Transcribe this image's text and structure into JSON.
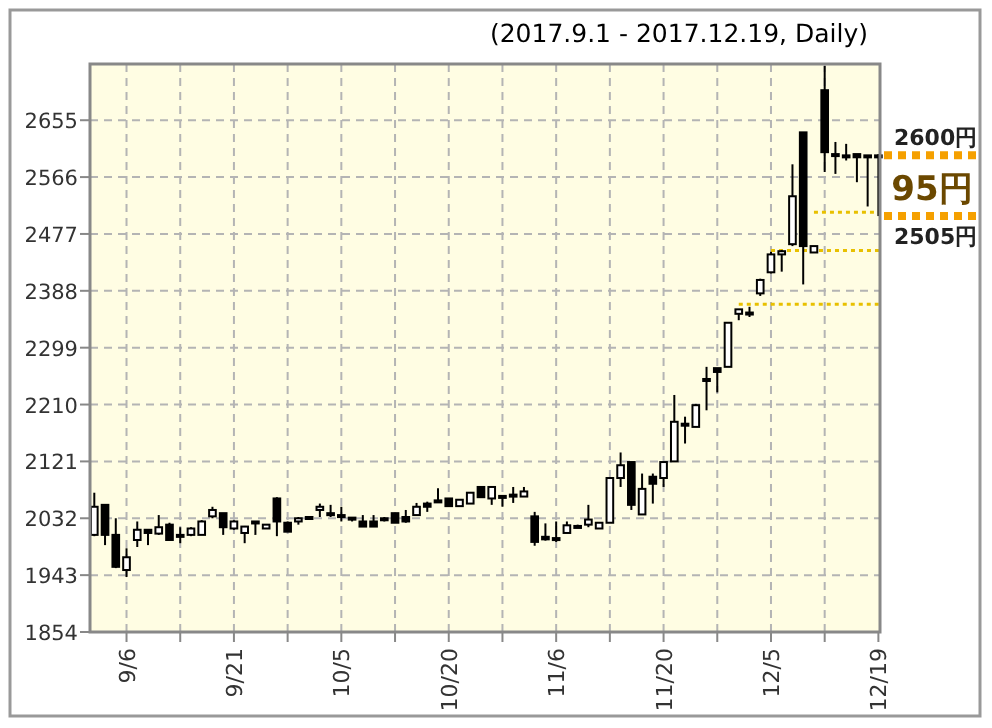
{
  "chart_data": {
    "type": "candlestick",
    "subtitle": "(2017.9.1 - 2017.12.19, Daily)",
    "categories": [
      null,
      null,
      null,
      "9/6",
      null,
      null,
      null,
      null,
      null,
      null,
      null,
      null,
      null,
      "9/21",
      null,
      null,
      null,
      null,
      null,
      null,
      null,
      null,
      null,
      "10/5",
      null,
      null,
      null,
      null,
      null,
      null,
      null,
      null,
      null,
      "10/20",
      null,
      null,
      null,
      null,
      null,
      null,
      null,
      null,
      null,
      "11/6",
      null,
      null,
      null,
      null,
      null,
      null,
      null,
      null,
      null,
      "11/20",
      null,
      null,
      null,
      null,
      null,
      null,
      null,
      null,
      null,
      "12/5",
      null,
      null,
      null,
      null,
      null,
      null,
      null,
      null,
      null,
      "12/19"
    ],
    "ohlc": [
      [
        2006,
        2072,
        2004,
        2050
      ],
      [
        2053,
        2053,
        1990,
        2006
      ],
      [
        2006,
        2032,
        1954,
        1956
      ],
      [
        1951,
        1985,
        1940,
        1971
      ],
      [
        1998,
        2027,
        1987,
        2014
      ],
      [
        2014,
        2015,
        1990,
        2009
      ],
      [
        2008,
        2037,
        2006,
        2018
      ],
      [
        2022,
        2025,
        1998,
        1998
      ],
      [
        2006,
        2018,
        1993,
        2003
      ],
      [
        2006,
        2018,
        2004,
        2016
      ],
      [
        2006,
        2029,
        2006,
        2027
      ],
      [
        2035,
        2050,
        2032,
        2045
      ],
      [
        2040,
        2040,
        2006,
        2018
      ],
      [
        2016,
        2029,
        2014,
        2027
      ],
      [
        2009,
        2020,
        1993,
        2019
      ],
      [
        2027,
        2027,
        2006,
        2027
      ],
      [
        2016,
        2022,
        2016,
        2022
      ],
      [
        2063,
        2065,
        2004,
        2027
      ],
      [
        2025,
        2027,
        2011,
        2011
      ],
      [
        2027,
        2034,
        2022,
        2032
      ],
      [
        2034,
        2034,
        2030,
        2034
      ],
      [
        2045,
        2055,
        2034,
        2050
      ],
      [
        2040,
        2053,
        2034,
        2039
      ],
      [
        2037,
        2050,
        2027,
        2036
      ],
      [
        2033,
        2034,
        2027,
        2032
      ],
      [
        2027,
        2037,
        2019,
        2019
      ],
      [
        2027,
        2037,
        2019,
        2019
      ],
      [
        2032,
        2034,
        2027,
        2031
      ],
      [
        2040,
        2040,
        2025,
        2025
      ],
      [
        2034,
        2045,
        2025,
        2027
      ],
      [
        2037,
        2056,
        2037,
        2050
      ],
      [
        2055,
        2058,
        2042,
        2050
      ],
      [
        2060,
        2079,
        2056,
        2059
      ],
      [
        2063,
        2063,
        2051,
        2051
      ],
      [
        2051,
        2061,
        2051,
        2061
      ],
      [
        2055,
        2072,
        2055,
        2072
      ],
      [
        2081,
        2081,
        2065,
        2065
      ],
      [
        2063,
        2081,
        2053,
        2081
      ],
      [
        2067,
        2067,
        2050,
        2066
      ],
      [
        2069,
        2081,
        2056,
        2068
      ],
      [
        2066,
        2081,
        2066,
        2074
      ],
      [
        2035,
        2042,
        1989,
        1995
      ],
      [
        2003,
        2024,
        1997,
        1999
      ],
      [
        2001,
        2027,
        1995,
        2000
      ],
      [
        2009,
        2027,
        2009,
        2021
      ],
      [
        2020,
        2022,
        2019,
        2019
      ],
      [
        2022,
        2053,
        2018,
        2030
      ],
      [
        2016,
        2025,
        2016,
        2025
      ],
      [
        2025,
        2095,
        2025,
        2095
      ],
      [
        2095,
        2135,
        2081,
        2115
      ],
      [
        2120,
        2120,
        2045,
        2053
      ],
      [
        2038,
        2102,
        2038,
        2078
      ],
      [
        2097,
        2102,
        2055,
        2086
      ],
      [
        2095,
        2120,
        2081,
        2120
      ],
      [
        2121,
        2225,
        2121,
        2183
      ],
      [
        2180,
        2191,
        2149,
        2180
      ],
      [
        2175,
        2211,
        2175,
        2209
      ],
      [
        2250,
        2269,
        2201,
        2250
      ],
      [
        2267,
        2267,
        2229,
        2261
      ],
      [
        2269,
        2338,
        2269,
        2338
      ],
      [
        2352,
        2359,
        2342,
        2359
      ],
      [
        2354,
        2363,
        2347,
        2354
      ],
      [
        2384,
        2407,
        2380,
        2405
      ],
      [
        2417,
        2449,
        2415,
        2445
      ],
      [
        2445,
        2452,
        2418,
        2450
      ],
      [
        2461,
        2586,
        2458,
        2536
      ],
      [
        2636,
        2636,
        2398,
        2458
      ],
      [
        2448,
        2458,
        2448,
        2458
      ],
      [
        2702,
        2740,
        2574,
        2605
      ],
      [
        2602,
        2621,
        2571,
        2600
      ],
      [
        2600,
        2618,
        2592,
        2599
      ],
      [
        2602,
        2602,
        2558,
        2597
      ],
      [
        2600,
        2600,
        2520,
        2598
      ],
      [
        2600,
        2602,
        2505,
        2598
      ]
    ],
    "series": [
      {
        "type": "line",
        "color": "#e8c000",
        "line_style": "dotted",
        "values": [
          null,
          null,
          null,
          null,
          null,
          null,
          null,
          null,
          null,
          null,
          null,
          null,
          null,
          null,
          null,
          null,
          null,
          null,
          null,
          null,
          null,
          null,
          null,
          null,
          null,
          null,
          null,
          null,
          null,
          null,
          null,
          null,
          null,
          null,
          null,
          null,
          null,
          null,
          null,
          null,
          null,
          null,
          null,
          null,
          null,
          null,
          null,
          null,
          null,
          null,
          null,
          null,
          null,
          null,
          null,
          null,
          null,
          null,
          null,
          null,
          2367,
          2367,
          2367,
          2367,
          2367,
          2367,
          2367,
          2367,
          2367,
          2367,
          2367,
          2367,
          2367,
          2367
        ]
      },
      {
        "type": "line",
        "color": "#e8c000",
        "line_style": "dotted",
        "values": [
          null,
          null,
          null,
          null,
          null,
          null,
          null,
          null,
          null,
          null,
          null,
          null,
          null,
          null,
          null,
          null,
          null,
          null,
          null,
          null,
          null,
          null,
          null,
          null,
          null,
          null,
          null,
          null,
          null,
          null,
          null,
          null,
          null,
          null,
          null,
          null,
          null,
          null,
          null,
          null,
          null,
          null,
          null,
          null,
          null,
          null,
          null,
          null,
          null,
          null,
          null,
          null,
          null,
          null,
          null,
          null,
          null,
          null,
          null,
          null,
          null,
          null,
          null,
          2451,
          2451,
          2451,
          2451,
          2451,
          2451,
          2451,
          2451,
          2451,
          2451,
          2451
        ]
      },
      {
        "type": "line",
        "color": "#e8c000",
        "line_style": "dotted",
        "values": [
          null,
          null,
          null,
          null,
          null,
          null,
          null,
          null,
          null,
          null,
          null,
          null,
          null,
          null,
          null,
          null,
          null,
          null,
          null,
          null,
          null,
          null,
          null,
          null,
          null,
          null,
          null,
          null,
          null,
          null,
          null,
          null,
          null,
          null,
          null,
          null,
          null,
          null,
          null,
          null,
          null,
          null,
          null,
          null,
          null,
          null,
          null,
          null,
          null,
          null,
          null,
          null,
          null,
          null,
          null,
          null,
          null,
          null,
          null,
          null,
          null,
          null,
          null,
          null,
          null,
          null,
          null,
          2511,
          2511,
          2511,
          2511,
          2511,
          2511,
          2511
        ]
      }
    ],
    "ylim": [
      1854,
      2743
    ],
    "yticks": [
      1854,
      1943,
      2032,
      2121,
      2210,
      2299,
      2388,
      2477,
      2566,
      2655
    ],
    "grid": true,
    "ref_lines": [
      {
        "axis": "y",
        "value": 2600,
        "label": "2600円",
        "color": "#f5a000",
        "line_style": "dotted"
      },
      {
        "axis": "y",
        "value": 2505,
        "label": "2505円",
        "color": "#f5a000",
        "line_style": "dotted"
      }
    ],
    "annotations": [
      "95円"
    ]
  }
}
